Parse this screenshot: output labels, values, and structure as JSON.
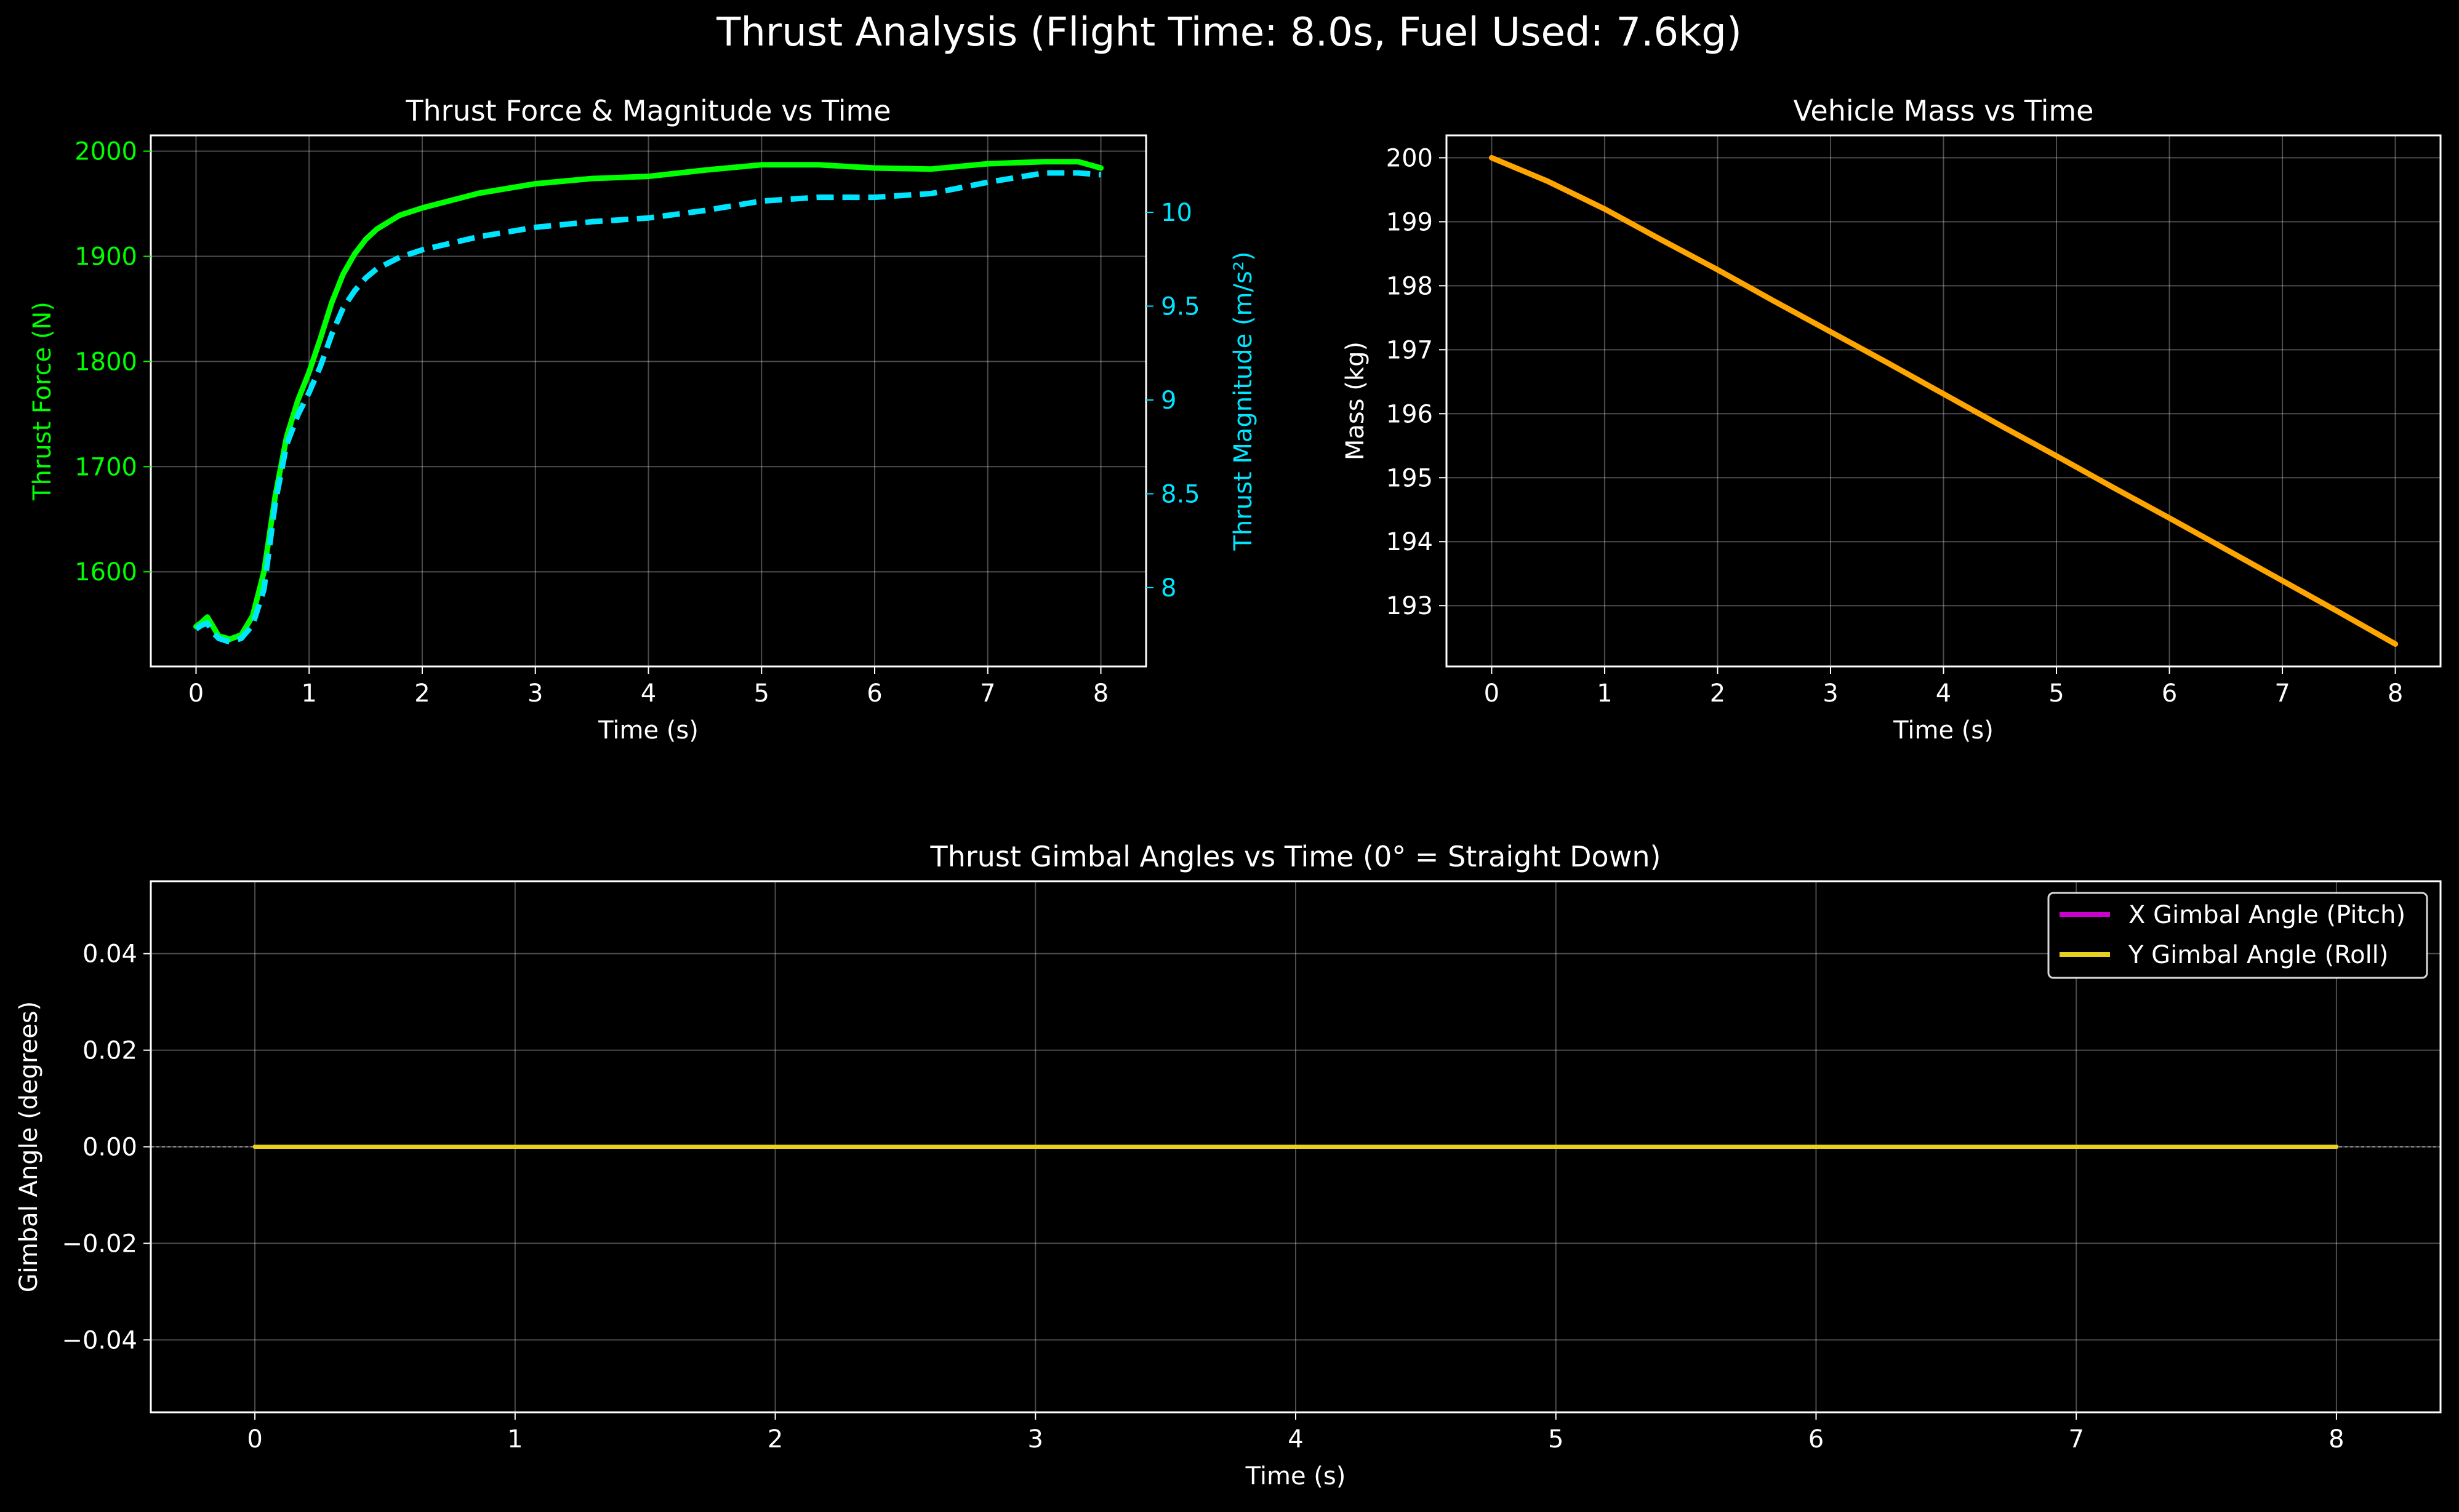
{
  "figure": {
    "title": "Thrust Analysis (Flight Time: 8.0s, Fuel Used: 7.6kg)",
    "background": "#000000"
  },
  "chart_data": [
    {
      "type": "line",
      "title": "Thrust Force & Magnitude vs Time",
      "xlabel": "Time (s)",
      "ylabel": "Thrust Force (N)",
      "ylabel_right": "Thrust Magnitude (m/s²)",
      "xlim": [
        -0.4,
        8.4
      ],
      "ylim": [
        1510,
        2015
      ],
      "ylim_right": [
        7.58,
        10.41
      ],
      "xticks": [
        0,
        1,
        2,
        3,
        4,
        5,
        6,
        7,
        8
      ],
      "yticks": [
        1600,
        1700,
        1800,
        1900,
        2000
      ],
      "yticks_right": [
        8.0,
        8.5,
        9.0,
        9.5,
        10.0
      ],
      "grid": true,
      "series": [
        {
          "axis": "left",
          "color": "#00ff00",
          "style": "solid",
          "x": [
            0,
            0.05,
            0.1,
            0.15,
            0.2,
            0.3,
            0.4,
            0.5,
            0.6,
            0.7,
            0.8,
            0.9,
            1.0,
            1.1,
            1.2,
            1.3,
            1.4,
            1.5,
            1.6,
            1.8,
            2.0,
            2.5,
            3.0,
            3.5,
            4.0,
            4.5,
            5.0,
            5.5,
            6.0,
            6.5,
            7.0,
            7.5,
            7.8,
            8.0
          ],
          "values": [
            1548,
            1552,
            1557,
            1548,
            1539,
            1536,
            1540,
            1558,
            1600,
            1672,
            1728,
            1763,
            1790,
            1822,
            1856,
            1883,
            1902,
            1916,
            1926,
            1939,
            1946,
            1960,
            1969,
            1974,
            1976,
            1982,
            1987,
            1987,
            1984,
            1983,
            1988,
            1990,
            1990,
            1984
          ]
        },
        {
          "axis": "right",
          "color": "#00e5ff",
          "style": "dashed",
          "x": [
            0,
            0.05,
            0.1,
            0.15,
            0.2,
            0.3,
            0.4,
            0.5,
            0.6,
            0.7,
            0.8,
            0.9,
            1.0,
            1.1,
            1.2,
            1.3,
            1.4,
            1.5,
            1.6,
            1.8,
            2.0,
            2.5,
            3.0,
            3.5,
            4.0,
            4.5,
            5.0,
            5.5,
            6.0,
            6.5,
            7.0,
            7.5,
            7.8,
            8.0
          ],
          "values": [
            7.78,
            7.8,
            7.81,
            7.76,
            7.73,
            7.71,
            7.73,
            7.8,
            7.99,
            8.45,
            8.76,
            8.92,
            9.04,
            9.18,
            9.35,
            9.49,
            9.58,
            9.65,
            9.7,
            9.76,
            9.8,
            9.87,
            9.92,
            9.95,
            9.97,
            10.01,
            10.06,
            10.08,
            10.08,
            10.1,
            10.16,
            10.21,
            10.21,
            10.2
          ]
        }
      ]
    },
    {
      "type": "line",
      "title": "Vehicle Mass vs Time",
      "xlabel": "Time (s)",
      "ylabel": "Mass (kg)",
      "xlim": [
        -0.4,
        8.4
      ],
      "ylim": [
        192.05,
        200.35
      ],
      "xticks": [
        0,
        1,
        2,
        3,
        4,
        5,
        6,
        7,
        8
      ],
      "yticks": [
        193,
        194,
        195,
        196,
        197,
        198,
        199,
        200
      ],
      "grid": true,
      "series": [
        {
          "axis": "left",
          "color": "#ffa500",
          "style": "solid",
          "x": [
            0,
            0.5,
            1,
            1.5,
            2,
            2.5,
            3,
            3.5,
            4,
            4.5,
            5,
            5.5,
            6,
            6.5,
            7,
            7.5,
            8
          ],
          "values": [
            200.0,
            199.63,
            199.2,
            198.72,
            198.25,
            197.76,
            197.28,
            196.8,
            196.31,
            195.82,
            195.34,
            194.85,
            194.37,
            193.88,
            193.39,
            192.9,
            192.4
          ]
        }
      ]
    },
    {
      "type": "line",
      "title": "Thrust Gimbal Angles vs Time (0° = Straight Down)",
      "xlabel": "Time (s)",
      "ylabel": "Gimbal Angle (degrees)",
      "xlim": [
        -0.4,
        8.4
      ],
      "ylim": [
        -0.055,
        0.055
      ],
      "xticks": [
        0,
        1,
        2,
        3,
        4,
        5,
        6,
        7,
        8
      ],
      "yticks": [
        -0.04,
        -0.02,
        0.0,
        0.02,
        0.04
      ],
      "ytick_labels": [
        "−0.04",
        "−0.02",
        "0.00",
        "0.02",
        "0.04"
      ],
      "grid": true,
      "legend_position": "top-right",
      "reference_line": 0,
      "series": [
        {
          "name": "X Gimbal Angle (Pitch)",
          "color": "#cc00cc",
          "style": "solid",
          "x": [
            0,
            8
          ],
          "values": [
            0,
            0
          ]
        },
        {
          "name": "Y Gimbal Angle (Roll)",
          "color": "#e6d21e",
          "style": "solid",
          "x": [
            0,
            8
          ],
          "values": [
            0,
            0
          ]
        }
      ]
    }
  ]
}
